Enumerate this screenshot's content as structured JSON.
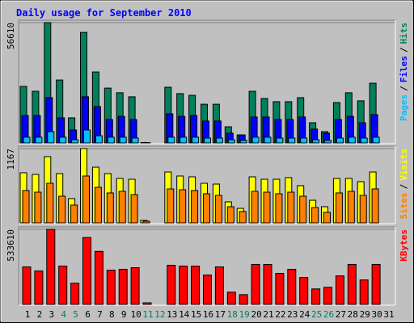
{
  "chart_data": {
    "type": "bar",
    "title": "Daily usage for September 2010",
    "categories": [
      "1",
      "2",
      "3",
      "4",
      "5",
      "6",
      "7",
      "8",
      "9",
      "10",
      "11",
      "12",
      "13",
      "14",
      "15",
      "16",
      "17",
      "18",
      "19",
      "20",
      "21",
      "22",
      "23",
      "24",
      "25",
      "26",
      "27",
      "28",
      "29",
      "30",
      "31"
    ],
    "category_colors": [
      "#000000",
      "#000000",
      "#000000",
      "#00805c",
      "#00805c",
      "#000000",
      "#000000",
      "#000000",
      "#000000",
      "#000000",
      "#00805c",
      "#00805c",
      "#000000",
      "#000000",
      "#000000",
      "#000000",
      "#000000",
      "#00805c",
      "#00805c",
      "#000000",
      "#000000",
      "#000000",
      "#000000",
      "#000000",
      "#00805c",
      "#00805c",
      "#000000",
      "#000000",
      "#000000",
      "#000000",
      "#000000"
    ],
    "separator": "/",
    "panels": [
      {
        "ylim": [
          0,
          56610
        ],
        "yticks": [
          56610
        ],
        "series": [
          {
            "name": "Hits",
            "color": "#00805c",
            "values": [
              26600,
              24300,
              56610,
              29600,
              11800,
              52000,
              33400,
              25800,
              23600,
              21700,
              200,
              0,
              26200,
              23200,
              22400,
              18200,
              18200,
              7600,
              3800,
              24300,
              20900,
              19400,
              19400,
              21300,
              9500,
              5300,
              19000,
              23600,
              19800,
              28100,
              0
            ]
          },
          {
            "name": "Files",
            "color": "#0000ff",
            "values": [
              12900,
              12900,
              21300,
              11800,
              6100,
              21700,
              17100,
              11000,
              12500,
              11000,
              150,
              0,
              13700,
              12500,
              12900,
              10300,
              10300,
              4600,
              3800,
              12200,
              12200,
              11000,
              11000,
              12200,
              6500,
              4600,
              11000,
              12500,
              9500,
              13300,
              0
            ]
          },
          {
            "name": "Pages",
            "color": "#00c0ff",
            "values": [
              2700,
              2700,
              5300,
              2700,
              1500,
              6100,
              3400,
              2700,
              2700,
              2300,
              100,
              0,
              2700,
              2700,
              2700,
              2300,
              2300,
              1500,
              1200,
              2700,
              2700,
              2300,
              2300,
              2300,
              1500,
              1200,
              2300,
              2700,
              2300,
              2700,
              0
            ]
          }
        ]
      },
      {
        "ylim": [
          0,
          1167
        ],
        "yticks": [
          1167
        ],
        "series": [
          {
            "name": "Visits",
            "color": "#ffff00",
            "values": [
              787,
              761,
              1040,
              774,
              381,
              1167,
              875,
              774,
              698,
              685,
              38,
              0,
              799,
              736,
              723,
              622,
              609,
              330,
              228,
              723,
              685,
              685,
              711,
              584,
              355,
              254,
              698,
              698,
              647,
              799,
              0
            ]
          },
          {
            "name": "Sites",
            "color": "#ff8000",
            "values": [
              508,
              482,
              622,
              419,
              279,
              736,
              558,
              470,
              495,
              444,
              25,
              0,
              533,
              520,
              508,
              457,
              432,
              254,
              178,
              495,
              482,
              457,
              482,
              419,
              241,
              165,
              470,
              495,
              432,
              533,
              0
            ]
          }
        ]
      },
      {
        "ylim": [
          0,
          533610
        ],
        "yticks": [
          533610
        ],
        "series": [
          {
            "name": "KBytes",
            "color": "#ff0000",
            "values": [
              266800,
              237800,
              533610,
              272600,
              150800,
              475600,
              377000,
              243600,
              249400,
              261000,
              11600,
              0,
              278400,
              272600,
              272600,
              208800,
              266800,
              87000,
              69600,
              284200,
              284200,
              220400,
              249400,
              191400,
              110200,
              121800,
              203000,
              284200,
              174000,
              284200,
              0
            ]
          }
        ]
      }
    ]
  }
}
